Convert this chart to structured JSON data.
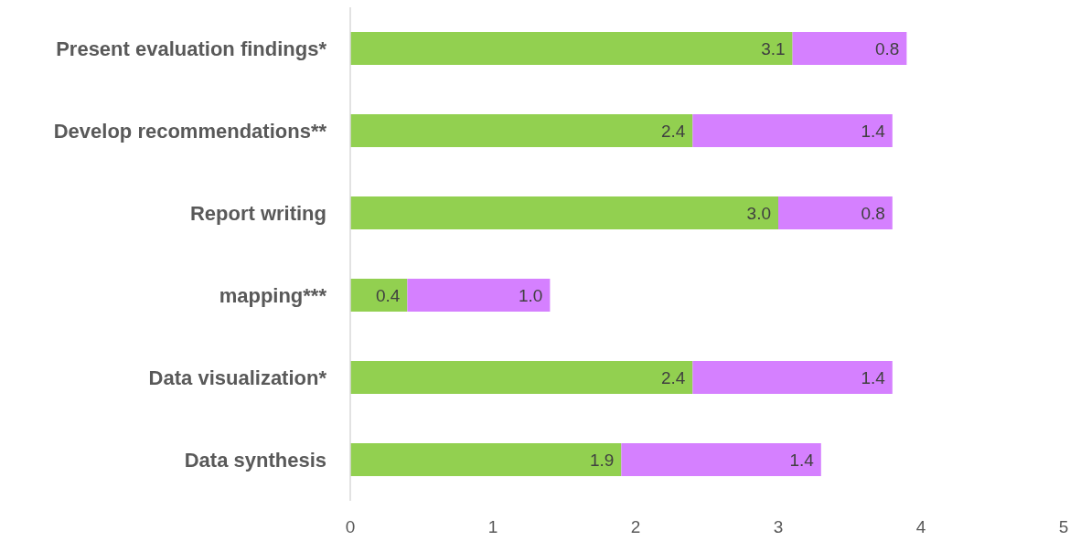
{
  "chart_data": {
    "type": "bar",
    "orientation": "horizontal",
    "stacked": true,
    "categories": [
      "Present evaluation findings*",
      "Develop recommendations**",
      "Report writing",
      "mapping***",
      "Data visualization*",
      "Data synthesis"
    ],
    "series": [
      {
        "color": "#92d050",
        "values": [
          3.1,
          2.4,
          3.0,
          0.4,
          2.4,
          1.9
        ],
        "value_labels": [
          "3.1",
          "2.4",
          "3.0",
          "0.4",
          "2.4",
          "1.9"
        ]
      },
      {
        "color": "#d580ff",
        "values": [
          0.8,
          1.4,
          0.8,
          1.0,
          1.4,
          1.4
        ],
        "value_labels": [
          "0.8",
          "1.4",
          "0.8",
          "1.0",
          "1.4",
          "1.4"
        ]
      }
    ],
    "xlim": [
      0,
      5
    ],
    "xticks": [
      0,
      1,
      2,
      3,
      4,
      5
    ],
    "grid": false
  }
}
